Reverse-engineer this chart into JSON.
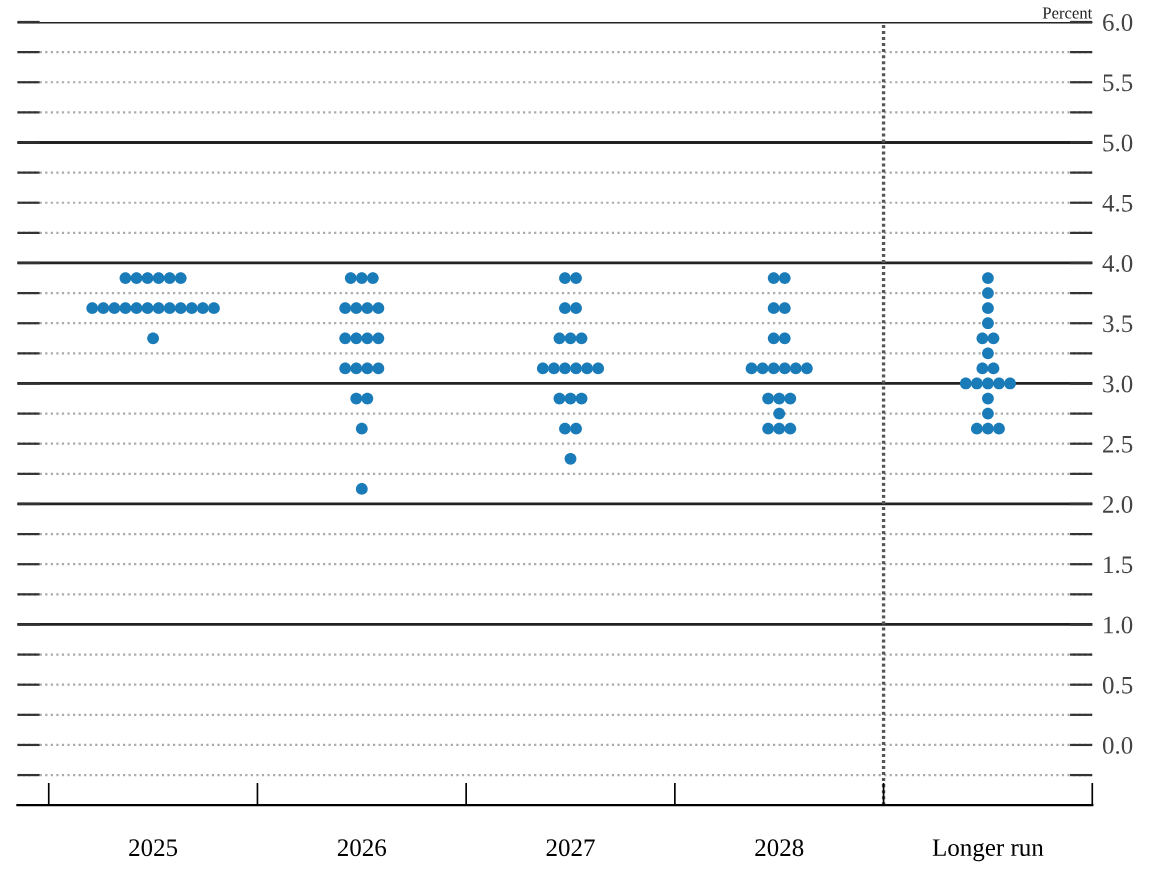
{
  "chart_data": {
    "type": "scatter",
    "ylabel": "Percent",
    "categories": [
      "2025",
      "2026",
      "2027",
      "2028",
      "Longer run"
    ],
    "series": [
      {
        "color": "#1a7bb9",
        "values": [
          3.875,
          3.875,
          3.875,
          3.875,
          3.875
        ]
      },
      {
        "color": "#1a7bb9",
        "values": [
          3.875,
          3.875,
          3.875,
          3.875,
          3.75
        ]
      },
      {
        "color": "#1a7bb9",
        "values": [
          3.875,
          3.875,
          3.625,
          3.625,
          3.625
        ]
      },
      {
        "color": "#1a7bb9",
        "values": [
          3.875,
          3.625,
          3.625,
          3.625,
          3.5
        ]
      },
      {
        "color": "#1a7bb9",
        "values": [
          3.875,
          3.625,
          3.375,
          3.375,
          3.375
        ]
      },
      {
        "color": "#1a7bb9",
        "values": [
          3.875,
          3.625,
          3.375,
          3.375,
          3.375
        ]
      },
      {
        "color": "#1a7bb9",
        "values": [
          3.625,
          3.625,
          3.375,
          3.125,
          3.25
        ]
      },
      {
        "color": "#1a7bb9",
        "values": [
          3.625,
          3.375,
          3.125,
          3.125,
          3.125
        ]
      },
      {
        "color": "#1a7bb9",
        "values": [
          3.625,
          3.375,
          3.125,
          3.125,
          3.125
        ]
      },
      {
        "color": "#1a7bb9",
        "values": [
          3.625,
          3.375,
          3.125,
          3.125,
          3.0
        ]
      },
      {
        "color": "#1a7bb9",
        "values": [
          3.625,
          3.375,
          3.125,
          3.125,
          3.0
        ]
      },
      {
        "color": "#1a7bb9",
        "values": [
          3.625,
          3.125,
          3.125,
          3.125,
          3.0
        ]
      },
      {
        "color": "#1a7bb9",
        "values": [
          3.625,
          3.125,
          3.125,
          2.875,
          3.0
        ]
      },
      {
        "color": "#1a7bb9",
        "values": [
          3.625,
          3.125,
          2.875,
          2.875,
          3.0
        ]
      },
      {
        "color": "#1a7bb9",
        "values": [
          3.625,
          3.125,
          2.875,
          2.875,
          2.875
        ]
      },
      {
        "color": "#1a7bb9",
        "values": [
          3.625,
          2.875,
          2.875,
          2.75,
          2.75
        ]
      },
      {
        "color": "#1a7bb9",
        "values": [
          3.625,
          2.875,
          2.625,
          2.625,
          2.625
        ]
      },
      {
        "color": "#1a7bb9",
        "values": [
          3.625,
          2.625,
          2.625,
          2.625,
          2.625
        ]
      },
      {
        "color": "#1a7bb9",
        "values": [
          3.375,
          2.125,
          2.375,
          2.625,
          2.625
        ]
      }
    ],
    "marker": "circle",
    "ylim": [
      -0.5,
      6.0
    ],
    "yticks": [
      {
        "value": -0.25,
        "label": null
      },
      {
        "value": 0,
        "label": "0.0"
      },
      {
        "value": 0.25,
        "label": null
      },
      {
        "value": 0.5,
        "label": "0.5"
      },
      {
        "value": 0.75,
        "label": null
      },
      {
        "value": 1,
        "label": "1.0"
      },
      {
        "value": 1.25,
        "label": null
      },
      {
        "value": 1.5,
        "label": "1.5"
      },
      {
        "value": 1.75,
        "label": null
      },
      {
        "value": 2,
        "label": "2.0"
      },
      {
        "value": 2.25,
        "label": null
      },
      {
        "value": 2.5,
        "label": "2.5"
      },
      {
        "value": 2.75,
        "label": null
      },
      {
        "value": 3,
        "label": "3.0"
      },
      {
        "value": 3.25,
        "label": null
      },
      {
        "value": 3.5,
        "label": "3.5"
      },
      {
        "value": 3.75,
        "label": null
      },
      {
        "value": 4,
        "label": "4.0"
      },
      {
        "value": 4.25,
        "label": null
      },
      {
        "value": 4.5,
        "label": "4.5"
      },
      {
        "value": 4.75,
        "label": null
      },
      {
        "value": 5,
        "label": "5.0"
      },
      {
        "value": 5.25,
        "label": null
      },
      {
        "value": 5.5,
        "label": "5.5"
      },
      {
        "value": 5.75,
        "label": null
      },
      {
        "value": 6,
        "label": "6.0"
      }
    ],
    "grid": "y"
  }
}
